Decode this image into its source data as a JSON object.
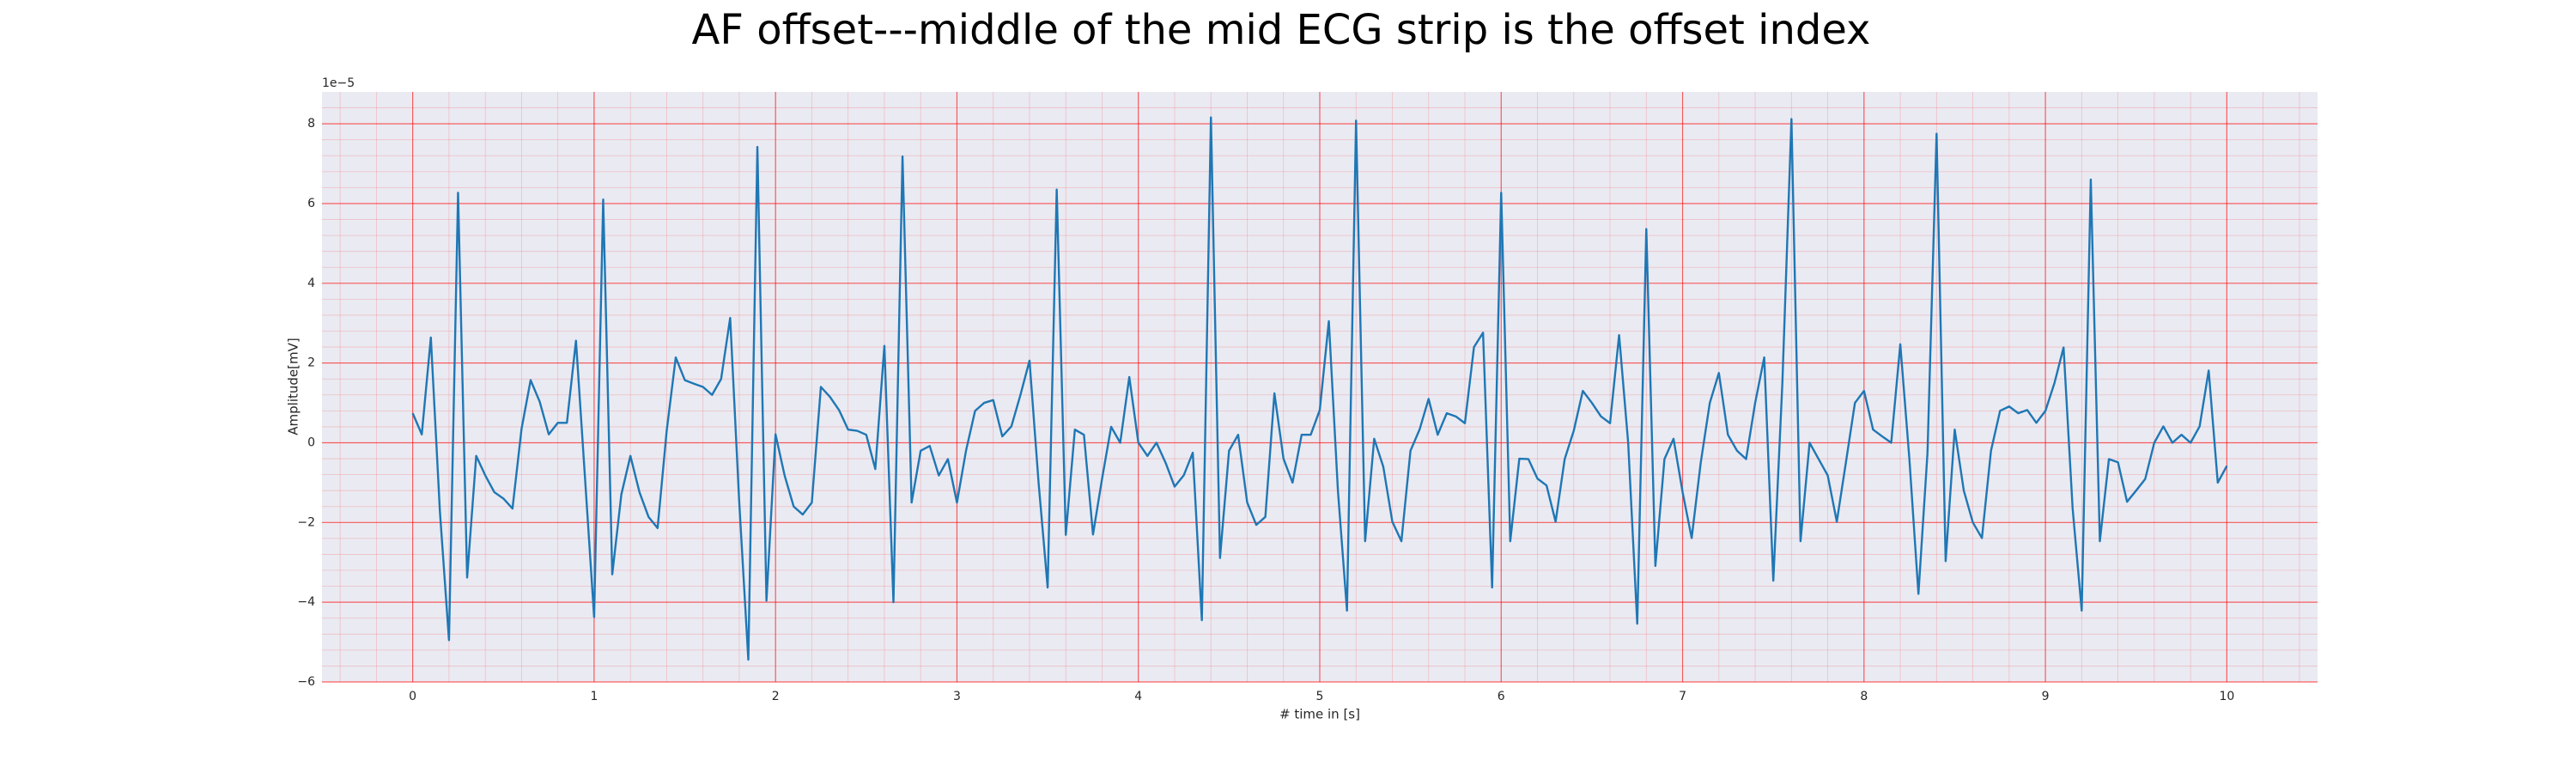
{
  "chart_data": {
    "type": "line",
    "title": "AF offset---middle of the mid ECG strip is the offset index",
    "xlabel": "# time in [s]",
    "ylabel": "Amplitude[mV]",
    "offset_label": "1e−5",
    "color": "#1f77b4",
    "background": "#eaeaf2",
    "grid": true,
    "minor_grid": true,
    "grid_color": "#ff0000",
    "xlim": [
      -0.5,
      10.5
    ],
    "ylim": [
      -6,
      8.8
    ],
    "xticks": [
      0,
      1,
      2,
      3,
      4,
      5,
      6,
      7,
      8,
      9,
      10
    ],
    "yticks": [
      {
        "value": -6,
        "label": "−6"
      },
      {
        "value": -4,
        "label": "−4"
      },
      {
        "value": -2,
        "label": "−2"
      },
      0,
      2,
      4,
      6,
      8
    ],
    "x": [
      0,
      0.05,
      0.1,
      0.15,
      0.2,
      0.25,
      0.3,
      0.35,
      0.4,
      0.45,
      0.5,
      0.55,
      0.6,
      0.65,
      0.7,
      0.75,
      0.8,
      0.85,
      0.9,
      0.95,
      1,
      1.05,
      1.1,
      1.15,
      1.2,
      1.25,
      1.3,
      1.35,
      1.4,
      1.45,
      1.5,
      1.55,
      1.6,
      1.65,
      1.7,
      1.75,
      1.8,
      1.85,
      1.9,
      1.95,
      2,
      2.05,
      2.1,
      2.15,
      2.2,
      2.25,
      2.3,
      2.35,
      2.4,
      2.45,
      2.5,
      2.55,
      2.6,
      2.65,
      2.7,
      2.75,
      2.8,
      2.85,
      2.9,
      2.95,
      3,
      3.05,
      3.1,
      3.15,
      3.2,
      3.25,
      3.3,
      3.35,
      3.4,
      3.45,
      3.5,
      3.55,
      3.6,
      3.65,
      3.7,
      3.75,
      3.8,
      3.85,
      3.9,
      3.95,
      4,
      4.05,
      4.1,
      4.15,
      4.2,
      4.25,
      4.3,
      4.35,
      4.4,
      4.45,
      4.5,
      4.55,
      4.6,
      4.65,
      4.7,
      4.75,
      4.8,
      4.85,
      4.9,
      4.95,
      5,
      5.05,
      5.1,
      5.15,
      5.2,
      5.25,
      5.3,
      5.35,
      5.4,
      5.45,
      5.5,
      5.55,
      5.6,
      5.65,
      5.7,
      5.75,
      5.8,
      5.85,
      5.9,
      5.95,
      6,
      6.05,
      6.1,
      6.15,
      6.2,
      6.25,
      6.3,
      6.35,
      6.4,
      6.45,
      6.5,
      6.55,
      6.6,
      6.65,
      6.7,
      6.75,
      6.8,
      6.85,
      6.9,
      6.95,
      7,
      7.05,
      7.1,
      7.15,
      7.2,
      7.25,
      7.3,
      7.35,
      7.4,
      7.45,
      7.5,
      7.55,
      7.6,
      7.65,
      7.7,
      7.75,
      7.8,
      7.85,
      7.9,
      7.95,
      8,
      8.05,
      8.1,
      8.15,
      8.2,
      8.25,
      8.3,
      8.35,
      8.4,
      8.45,
      8.5,
      8.55,
      8.6,
      8.65,
      8.7,
      8.75,
      8.8,
      8.85,
      8.9,
      8.95,
      9,
      9.05,
      9.1,
      9.15,
      9.2,
      9.25,
      9.3,
      9.35,
      9.4,
      9.45,
      9.5,
      9.55,
      9.6,
      9.65,
      9.7,
      9.75,
      9.8,
      9.85,
      9.9,
      9.95,
      10
    ],
    "values": [
      0.74,
      0.21,
      2.64,
      -1.73,
      -4.95,
      6.27,
      -3.38,
      -0.33,
      -0.82,
      -1.24,
      -1.4,
      -1.65,
      0.35,
      1.57,
      1.03,
      0.21,
      0.5,
      0.5,
      2.56,
      -0.9,
      -4.37,
      6.1,
      -3.3,
      -1.3,
      -0.33,
      -1.24,
      -1.86,
      -2.14,
      0.3,
      2.14,
      1.57,
      1.48,
      1.4,
      1.2,
      1.6,
      3.13,
      -1.5,
      -5.44,
      7.42,
      -3.96,
      0.21,
      -0.82,
      -1.6,
      -1.8,
      -1.5,
      1.4,
      1.15,
      0.82,
      0.33,
      0.3,
      0.2,
      -0.66,
      2.43,
      -4.0,
      7.18,
      -1.5,
      -0.2,
      -0.08,
      -0.82,
      -0.41,
      -1.5,
      -0.2,
      0.8,
      1.0,
      1.07,
      0.16,
      0.41,
      1.2,
      2.06,
      -1.0,
      -3.63,
      6.35,
      -2.31,
      0.33,
      0.2,
      -2.3,
      -0.9,
      0.4,
      0.0,
      1.65,
      0.0,
      -0.33,
      0.0,
      -0.5,
      -1.1,
      -0.82,
      -0.25,
      -4.45,
      8.16,
      -2.89,
      -0.2,
      0.2,
      -1.5,
      -2.06,
      -1.86,
      1.24,
      -0.4,
      -1.0,
      0.2,
      0.2,
      0.82,
      3.05,
      -1.2,
      -4.21,
      8.08,
      -2.47,
      0.1,
      -0.6,
      -1.98,
      -2.47,
      -0.2,
      0.33,
      1.1,
      0.2,
      0.74,
      0.66,
      0.49,
      2.4,
      2.76,
      -3.63,
      6.27,
      -2.47,
      -0.4,
      -0.41,
      -0.9,
      -1.07,
      -1.98,
      -0.41,
      0.3,
      1.3,
      1.0,
      0.66,
      0.49,
      2.7,
      0.0,
      -4.54,
      5.36,
      -3.09,
      -0.41,
      0.1,
      -1.24,
      -2.39,
      -0.5,
      1.0,
      1.75,
      0.2,
      -0.2,
      -0.41,
      1.0,
      2.14,
      -3.46,
      1.5,
      8.12,
      -2.47,
      0.0,
      -0.41,
      -0.82,
      -1.98,
      -0.5,
      1.0,
      1.3,
      0.33,
      0.16,
      0.0,
      2.47,
      -0.4,
      -3.79,
      -0.25,
      7.75,
      -2.97,
      0.33,
      -1.2,
      -2.0,
      -2.39,
      -0.2,
      0.8,
      0.91,
      0.74,
      0.82,
      0.5,
      0.8,
      1.5,
      2.39,
      -1.65,
      -4.21,
      6.6,
      -2.47,
      -0.41,
      -0.49,
      -1.48,
      -1.2,
      -0.91,
      0.0,
      0.41,
      0.0,
      0.2,
      0.0,
      0.41,
      1.81,
      -1.0,
      -0.58
    ]
  }
}
